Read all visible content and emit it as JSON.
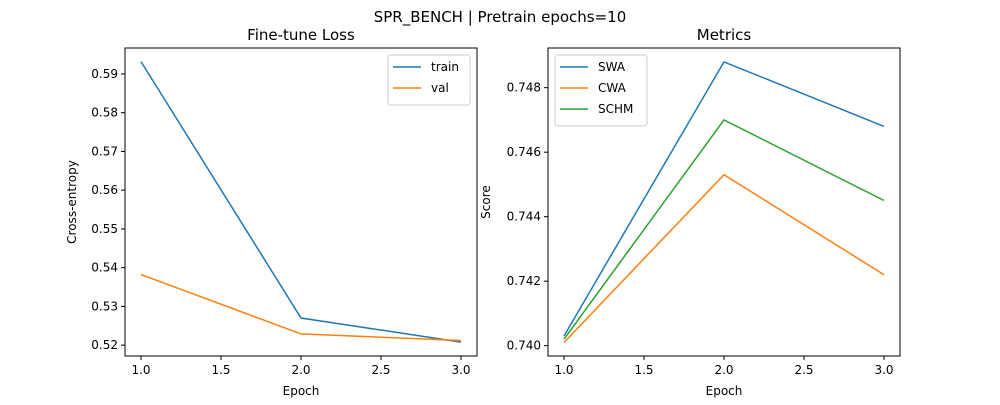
{
  "figure": {
    "suptitle": "SPR_BENCH | Pretrain epochs=10"
  },
  "chart_data": [
    {
      "type": "line",
      "title": "Fine-tune Loss",
      "xlabel": "Epoch",
      "ylabel": "Cross-entropy",
      "x": [
        1.0,
        2.0,
        3.0
      ],
      "xlim": [
        0.9,
        3.1
      ],
      "ylim": [
        0.5172,
        0.5967
      ],
      "xticks": [
        1.0,
        1.5,
        2.0,
        2.5,
        3.0
      ],
      "xtick_labels": [
        "1.0",
        "1.5",
        "2.0",
        "2.5",
        "3.0"
      ],
      "yticks": [
        0.52,
        0.53,
        0.54,
        0.55,
        0.56,
        0.57,
        0.58,
        0.59
      ],
      "ytick_labels": [
        "0.52",
        "0.53",
        "0.54",
        "0.55",
        "0.56",
        "0.57",
        "0.58",
        "0.59"
      ],
      "legend": "top-right",
      "grid": false,
      "series": [
        {
          "name": "train",
          "color": "#1f77b4",
          "values": [
            0.5932,
            0.527,
            0.5208
          ]
        },
        {
          "name": "val",
          "color": "#ff7f0e",
          "values": [
            0.5382,
            0.5229,
            0.5212
          ]
        }
      ]
    },
    {
      "type": "line",
      "title": "Metrics",
      "xlabel": "Epoch",
      "ylabel": "Score",
      "x": [
        1.0,
        2.0,
        3.0
      ],
      "xlim": [
        0.9,
        3.1
      ],
      "ylim": [
        0.73968,
        0.74923
      ],
      "xticks": [
        1.0,
        1.5,
        2.0,
        2.5,
        3.0
      ],
      "xtick_labels": [
        "1.0",
        "1.5",
        "2.0",
        "2.5",
        "3.0"
      ],
      "yticks": [
        0.74,
        0.742,
        0.744,
        0.746,
        0.748
      ],
      "ytick_labels": [
        "0.740",
        "0.742",
        "0.744",
        "0.746",
        "0.748"
      ],
      "legend": "top-left",
      "grid": false,
      "series": [
        {
          "name": "SWA",
          "color": "#1f77b4",
          "values": [
            0.7403,
            0.7488,
            0.7468
          ]
        },
        {
          "name": "CWA",
          "color": "#ff7f0e",
          "values": [
            0.7401,
            0.7453,
            0.7422
          ]
        },
        {
          "name": "SCHM",
          "color": "#2ca02c",
          "values": [
            0.7402,
            0.747,
            0.7445
          ]
        }
      ]
    }
  ]
}
